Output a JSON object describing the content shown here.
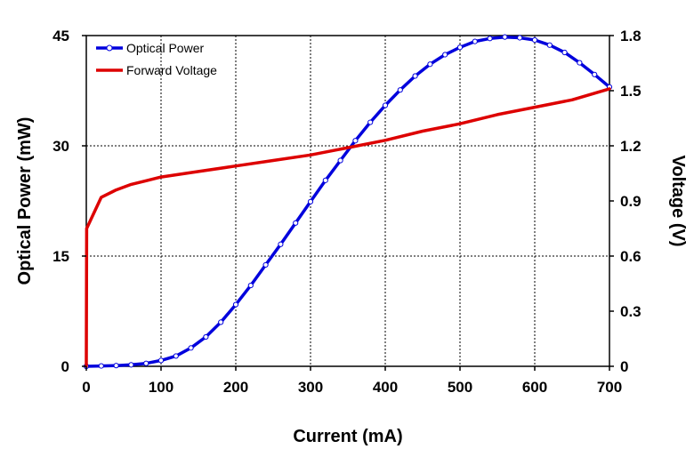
{
  "chart_data": {
    "type": "line",
    "xlabel": "Current (mA)",
    "ylabel_left": "Optical Power (mW)",
    "ylabel_right": "Voltage (V)",
    "xlim": [
      0,
      700
    ],
    "ylim_left": [
      0,
      45
    ],
    "ylim_right": [
      0,
      1.8
    ],
    "x_ticks": [
      "0",
      "100",
      "200",
      "300",
      "400",
      "500",
      "600",
      "700"
    ],
    "y_left_ticks": [
      "0",
      "15",
      "30",
      "45"
    ],
    "y_right_ticks": [
      "0",
      "0.3",
      "0.6",
      "0.9",
      "1.2",
      "1.5",
      "1.8"
    ],
    "grid": true,
    "legend_position": "top-left",
    "series": [
      {
        "name": "Optical Power",
        "axis": "left",
        "color": "#0000dd",
        "markers": true,
        "x": [
          0,
          20,
          40,
          60,
          80,
          100,
          120,
          140,
          160,
          180,
          200,
          220,
          240,
          260,
          280,
          300,
          320,
          340,
          360,
          380,
          400,
          420,
          440,
          460,
          480,
          500,
          520,
          540,
          560,
          580,
          600,
          620,
          640,
          660,
          680,
          700
        ],
        "y": [
          0,
          0.05,
          0.1,
          0.2,
          0.4,
          0.8,
          1.4,
          2.5,
          4.0,
          6.0,
          8.4,
          11.0,
          13.8,
          16.6,
          19.5,
          22.4,
          25.3,
          28.0,
          30.7,
          33.2,
          35.5,
          37.6,
          39.5,
          41.1,
          42.4,
          43.4,
          44.2,
          44.6,
          44.8,
          44.7,
          44.4,
          43.7,
          42.7,
          41.3,
          39.7,
          38.0
        ]
      },
      {
        "name": "Forward Voltage",
        "axis": "right",
        "color": "#dd0000",
        "markers": false,
        "x": [
          0,
          0.5,
          20,
          40,
          60,
          80,
          100,
          150,
          200,
          250,
          300,
          350,
          400,
          450,
          500,
          550,
          600,
          650,
          700
        ],
        "y": [
          0,
          0.75,
          0.92,
          0.96,
          0.99,
          1.01,
          1.03,
          1.06,
          1.09,
          1.12,
          1.15,
          1.19,
          1.23,
          1.28,
          1.32,
          1.37,
          1.41,
          1.45,
          1.51
        ]
      }
    ]
  }
}
